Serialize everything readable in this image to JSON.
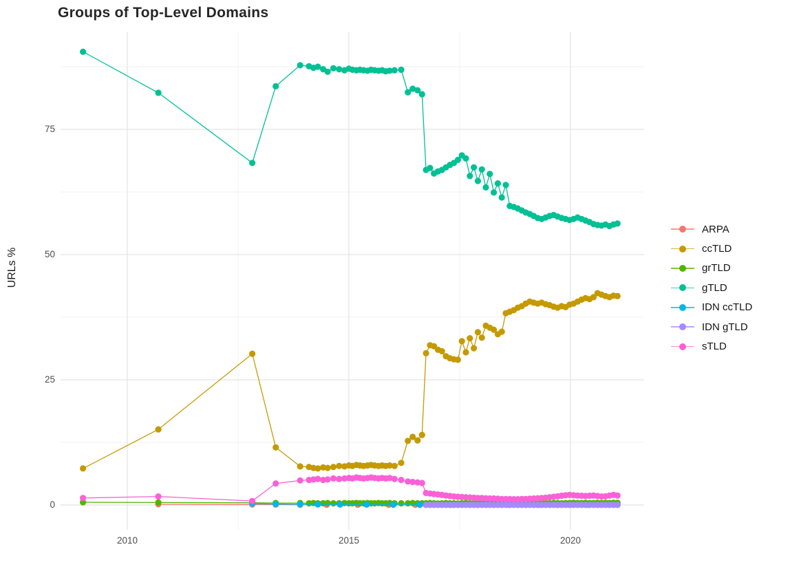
{
  "title": "Groups of Top-Level Domains",
  "axes": {
    "y": {
      "title": "URLs %",
      "ticks": [
        {
          "label": "0",
          "value": 0
        },
        {
          "label": "25",
          "value": 25
        },
        {
          "label": "50",
          "value": 50
        },
        {
          "label": "75",
          "value": 75
        }
      ],
      "minor_values": [
        12.5,
        37.5,
        62.5,
        87.5
      ]
    },
    "x": {
      "ticks": [
        {
          "label": "2010",
          "value": 2010
        },
        {
          "label": "2015",
          "value": 2015
        },
        {
          "label": "2020",
          "value": 2020
        }
      ],
      "minor_values": [
        2012.5,
        2017.5
      ]
    }
  },
  "style": {
    "grid_major_color": "#e3e3e3",
    "grid_minor_color": "#f1f1f1",
    "tick_text_color": "#4d4d4d",
    "title_color": "#262626"
  },
  "chart_data": {
    "type": "line",
    "title": "Groups of Top-Level Domains",
    "xlabel": "",
    "ylabel": "URLs %",
    "xlim": [
      2008.5,
      2021.6
    ],
    "ylim": [
      -5,
      94.5
    ],
    "grid": true,
    "legend_position": "right",
    "marker": "point",
    "x_main": [
      2009.0,
      2010.7,
      2012.82,
      2013.35,
      2013.9,
      2014.1,
      2014.2,
      2014.3,
      2014.42,
      2014.52,
      2014.65,
      2014.78,
      2014.9,
      2015.0,
      2015.08,
      2015.17,
      2015.25,
      2015.33,
      2015.42,
      2015.5,
      2015.58,
      2015.67,
      2015.75,
      2015.83,
      2015.92,
      2016.03,
      2016.18,
      2016.33,
      2016.44,
      2016.55,
      2016.65,
      2016.74,
      2016.83,
      2016.92,
      2017.01,
      2017.1,
      2017.19,
      2017.28,
      2017.37,
      2017.46,
      2017.55,
      2017.64,
      2017.73,
      2017.82,
      2017.91,
      2018.0,
      2018.09,
      2018.18,
      2018.27,
      2018.36,
      2018.45,
      2018.54,
      2018.63,
      2018.72,
      2018.81,
      2018.9,
      2018.99,
      2019.08,
      2019.17,
      2019.26,
      2019.35,
      2019.44,
      2019.53,
      2019.62,
      2019.71,
      2019.8,
      2019.89,
      2019.98,
      2020.07,
      2020.16,
      2020.25,
      2020.34,
      2020.43,
      2020.52,
      2020.61,
      2020.7,
      2020.79,
      2020.88,
      2020.97,
      2021.06
    ],
    "series": [
      {
        "name": "ARPA",
        "color": "#F8766D",
        "x": [
          2010.7,
          2012.82,
          2013.35,
          2013.9,
          2014.5,
          2015.2,
          2015.9,
          2016.5,
          2017.2,
          2017.9,
          2018.6,
          2019.3,
          2020.0,
          2020.7,
          2021.06
        ],
        "y": [
          0.15,
          0.1,
          0.08,
          0.06,
          0.05,
          0.05,
          0.05,
          0.05,
          0.05,
          0.05,
          0.05,
          0.05,
          0.05,
          0.05,
          0.05
        ]
      },
      {
        "name": "ccTLD",
        "color": "#C49A00",
        "x_ref": "x_main",
        "y": [
          7.3,
          15.1,
          30.2,
          11.5,
          7.7,
          7.6,
          7.4,
          7.3,
          7.5,
          7.4,
          7.6,
          7.8,
          7.7,
          7.9,
          7.8,
          8.0,
          7.9,
          7.8,
          7.9,
          8.0,
          7.9,
          7.8,
          7.9,
          7.8,
          7.9,
          7.8,
          8.4,
          12.8,
          13.6,
          12.9,
          14.0,
          30.3,
          31.9,
          31.7,
          31.0,
          30.7,
          29.7,
          29.3,
          29.1,
          29.0,
          32.7,
          30.5,
          33.3,
          31.3,
          34.5,
          33.4,
          35.8,
          35.4,
          35.0,
          34.1,
          34.6,
          38.3,
          38.6,
          38.9,
          39.4,
          39.7,
          40.2,
          40.6,
          40.4,
          40.2,
          40.4,
          40.1,
          39.9,
          39.6,
          39.4,
          39.7,
          39.5,
          40.0,
          40.2,
          40.6,
          41.0,
          41.3,
          41.1,
          41.5,
          42.3,
          42.0,
          41.7,
          41.5,
          41.8,
          41.7
        ]
      },
      {
        "name": "grTLD",
        "color": "#53B400",
        "x_ref": "x_main",
        "y": [
          0.55,
          0.5,
          0.45,
          0.4,
          0.4,
          0.35,
          0.4,
          0.35,
          0.35,
          0.4,
          0.35,
          0.35,
          0.4,
          0.35,
          0.35,
          0.4,
          0.35,
          0.35,
          0.4,
          0.35,
          0.35,
          0.4,
          0.35,
          0.35,
          0.4,
          0.35,
          0.35,
          0.35,
          0.4,
          0.35,
          0.35,
          0.35,
          0.4,
          0.35,
          0.3,
          0.35,
          0.4,
          0.35,
          0.35,
          0.3,
          0.35,
          0.4,
          0.35,
          0.35,
          0.4,
          0.35,
          0.3,
          0.35,
          0.35,
          0.4,
          0.35,
          0.35,
          0.4,
          0.35,
          0.35,
          0.4,
          0.4,
          0.35,
          0.4,
          0.35,
          0.4,
          0.4,
          0.35,
          0.4,
          0.4,
          0.35,
          0.4,
          0.4,
          0.45,
          0.4,
          0.4,
          0.45,
          0.4,
          0.4,
          0.45,
          0.4,
          0.45,
          0.4,
          0.45,
          0.45
        ]
      },
      {
        "name": "gTLD",
        "color": "#00C094",
        "x_ref": "x_main",
        "y": [
          90.5,
          82.3,
          68.3,
          83.6,
          87.8,
          87.6,
          87.3,
          87.5,
          87.0,
          86.5,
          87.2,
          87.0,
          86.8,
          87.1,
          86.9,
          86.8,
          86.9,
          86.8,
          86.7,
          86.9,
          86.8,
          86.7,
          86.8,
          86.6,
          86.7,
          86.8,
          86.9,
          82.4,
          83.1,
          82.8,
          82.0,
          66.9,
          67.3,
          66.2,
          66.6,
          66.9,
          67.4,
          67.9,
          68.3,
          68.9,
          69.8,
          69.2,
          65.7,
          67.4,
          64.7,
          67.0,
          63.4,
          66.1,
          62.4,
          64.2,
          61.4,
          63.9,
          59.7,
          59.5,
          59.2,
          58.8,
          58.4,
          58.1,
          57.7,
          57.3,
          57.1,
          57.4,
          57.7,
          57.9,
          57.6,
          57.3,
          57.1,
          56.9,
          57.1,
          57.4,
          57.1,
          56.8,
          56.5,
          56.1,
          55.9,
          55.8,
          56.0,
          55.7,
          56.0,
          56.2
        ]
      },
      {
        "name": "IDN ccTLD",
        "color": "#00B6EB",
        "x": [
          2012.82,
          2013.35,
          2013.9,
          2014.3,
          2014.8,
          2015.4,
          2016.0,
          2016.6,
          2017.3,
          2018.1,
          2018.9,
          2019.7,
          2020.4,
          2021.06
        ],
        "y": [
          0.3,
          0.2,
          0.15,
          0.12,
          0.1,
          0.08,
          0.07,
          0.06,
          0.05,
          0.05,
          0.05,
          0.05,
          0.05,
          0.05
        ]
      },
      {
        "name": "IDN gTLD",
        "color": "#A58AFF",
        "x": [
          2016.74,
          2016.83,
          2016.92,
          2017.01,
          2017.1,
          2017.19,
          2017.28,
          2017.37,
          2017.46,
          2017.55,
          2017.64,
          2017.73,
          2017.82,
          2017.91,
          2018.0,
          2018.09,
          2018.18,
          2018.27,
          2018.36,
          2018.45,
          2018.54,
          2018.63,
          2018.72,
          2018.81,
          2018.9,
          2018.99,
          2019.08,
          2019.17,
          2019.26,
          2019.35,
          2019.44,
          2019.53,
          2019.62,
          2019.71,
          2019.8,
          2019.89,
          2019.98,
          2020.07,
          2020.16,
          2020.25,
          2020.34,
          2020.43,
          2020.52,
          2020.61,
          2020.7,
          2020.79,
          2020.88,
          2020.97,
          2021.06
        ],
        "y": [
          0.02,
          0.02,
          0.02,
          0.02,
          0.02,
          0.02,
          0.02,
          0.02,
          0.02,
          0.02,
          0.02,
          0.02,
          0.02,
          0.02,
          0.02,
          0.02,
          0.02,
          0.02,
          0.02,
          0.02,
          0.02,
          0.02,
          0.02,
          0.02,
          0.02,
          0.02,
          0.02,
          0.02,
          0.02,
          0.02,
          0.02,
          0.02,
          0.02,
          0.02,
          0.02,
          0.02,
          0.02,
          0.02,
          0.02,
          0.02,
          0.02,
          0.02,
          0.02,
          0.02,
          0.02,
          0.02,
          0.02,
          0.02,
          0.02
        ]
      },
      {
        "name": "sTLD",
        "color": "#FB61D7",
        "x_ref": "x_main",
        "y": [
          1.4,
          1.7,
          0.8,
          4.3,
          4.9,
          5.0,
          5.1,
          5.2,
          5.0,
          5.1,
          5.3,
          5.2,
          5.3,
          5.4,
          5.3,
          5.5,
          5.4,
          5.3,
          5.4,
          5.5,
          5.4,
          5.3,
          5.4,
          5.3,
          5.4,
          5.2,
          5.0,
          4.7,
          4.6,
          4.5,
          4.4,
          2.4,
          2.3,
          2.2,
          2.1,
          2.0,
          1.9,
          1.8,
          1.7,
          1.65,
          1.6,
          1.55,
          1.5,
          1.45,
          1.4,
          1.4,
          1.35,
          1.3,
          1.3,
          1.25,
          1.2,
          1.2,
          1.2,
          1.15,
          1.15,
          1.2,
          1.2,
          1.25,
          1.3,
          1.35,
          1.4,
          1.45,
          1.55,
          1.65,
          1.75,
          1.85,
          1.95,
          2.0,
          1.95,
          1.9,
          1.85,
          1.8,
          1.85,
          1.9,
          1.8,
          1.7,
          1.75,
          1.9,
          2.0,
          1.9
        ]
      }
    ]
  }
}
